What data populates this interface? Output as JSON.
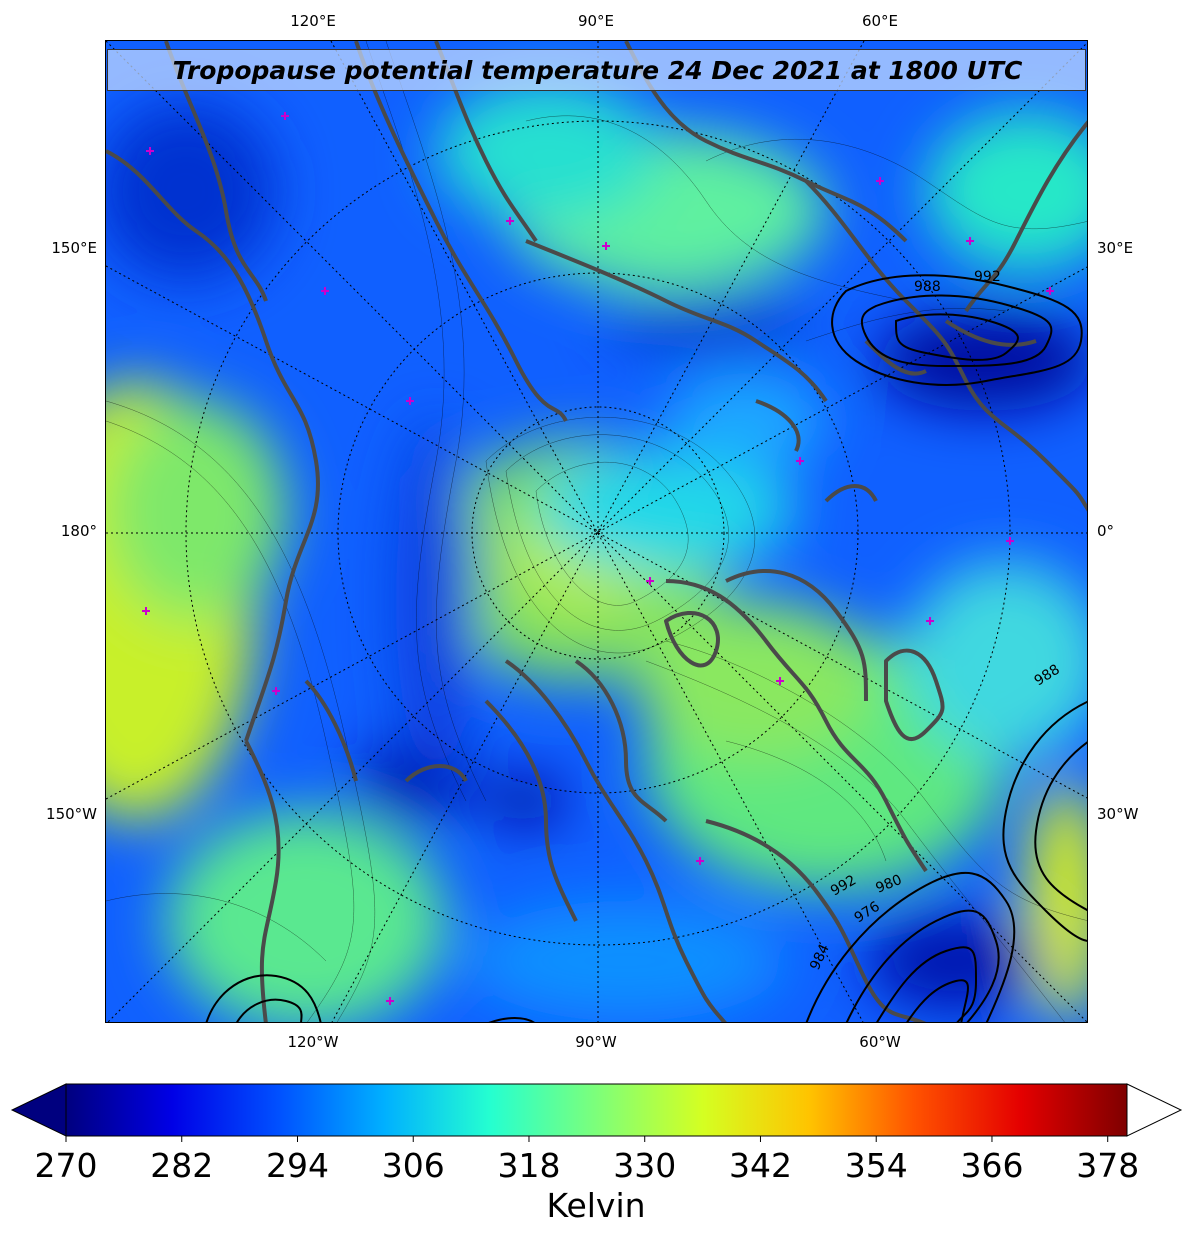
{
  "title": "Tropopause potential temperature 24 Dec 2021 at 1800 UTC",
  "colors": {
    "land_outline": "#4a4a4a",
    "isobar": "#000000",
    "marker": "#cc00cc"
  },
  "longitude_labels": {
    "top": [
      "120°E",
      "90°E",
      "60°E"
    ],
    "bottom": [
      "120°W",
      "90°W",
      "60°W"
    ],
    "left": [
      "150°E",
      "180°",
      "150°W"
    ],
    "right": [
      "30°E",
      "0°",
      "30°W"
    ]
  },
  "isobar_labels": [
    "992",
    "988",
    "988",
    "992",
    "980",
    "976",
    "984"
  ],
  "colorbar": {
    "ticks": [
      "270",
      "282",
      "294",
      "306",
      "318",
      "330",
      "342",
      "354",
      "366",
      "378"
    ],
    "label": "Kelvin",
    "min": 270,
    "max": 380,
    "stops": [
      "#00007f",
      "#0000e6",
      "#0050ff",
      "#00b0ff",
      "#25ffd0",
      "#7dff7a",
      "#d4ff22",
      "#ffc400",
      "#ff5200",
      "#e40000",
      "#7f0000"
    ]
  }
}
